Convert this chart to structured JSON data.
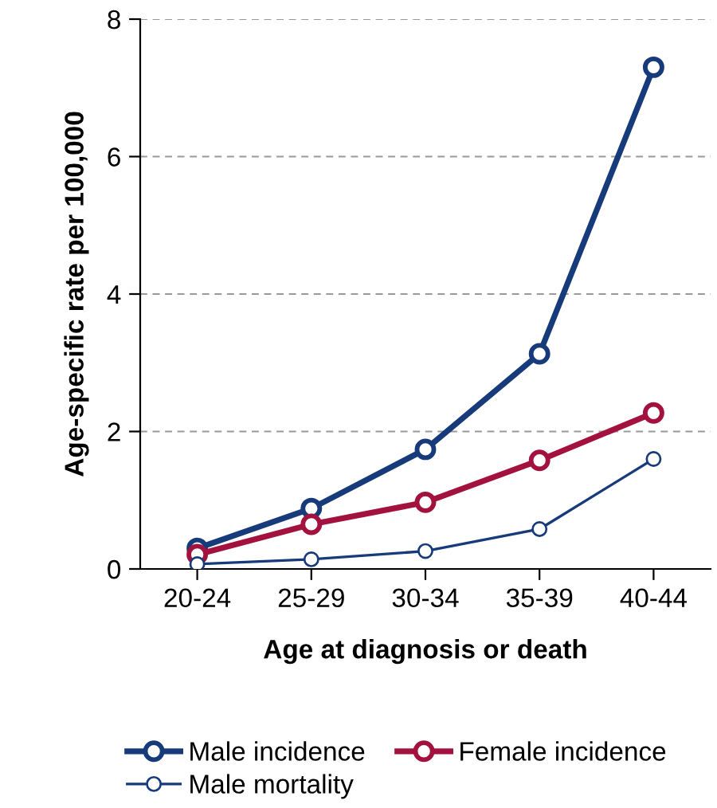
{
  "chart_data": {
    "type": "line",
    "xlabel": "Age at diagnosis or death",
    "ylabel": "Age-specific rate per 100,000",
    "categories": [
      "20-24",
      "25-29",
      "30-34",
      "35-39",
      "40-44"
    ],
    "series": [
      {
        "name": "Male incidence",
        "color": "#173b7a",
        "values": [
          0.3,
          0.88,
          1.74,
          3.13,
          7.3
        ]
      },
      {
        "name": "Female incidence",
        "color": "#a3123f",
        "values": [
          0.21,
          0.65,
          0.97,
          1.58,
          2.27
        ]
      },
      {
        "name": "Male mortality",
        "color": "#173b7a",
        "values": [
          0.07,
          0.14,
          0.26,
          0.58,
          1.6
        ]
      }
    ],
    "ylim": [
      0,
      8
    ],
    "yticks": [
      0,
      2,
      4,
      6,
      8
    ],
    "grid": "y",
    "legend": "bottom",
    "marker": "circle",
    "line_style": "solid"
  }
}
